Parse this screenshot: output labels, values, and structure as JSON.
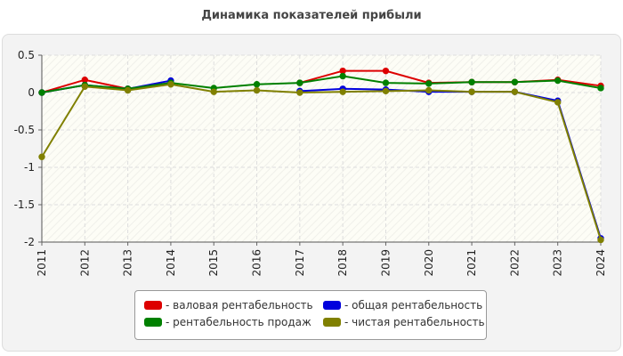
{
  "chart_data": {
    "type": "line",
    "title": "Динамика показателей прибыли",
    "categories": [
      "2011",
      "2012",
      "2013",
      "2014",
      "2015",
      "2016",
      "2017",
      "2018",
      "2019",
      "2020",
      "2021",
      "2022",
      "2023",
      "2024"
    ],
    "ylim": [
      -2,
      0.5
    ],
    "yticks": [
      "0.5",
      "0",
      "-0.5",
      "-1",
      "-1.5",
      "-2"
    ],
    "ytick_values": [
      0.5,
      0,
      -0.5,
      -1,
      -1.5,
      -2
    ],
    "grid": true,
    "legend_position": "bottom",
    "series": [
      {
        "name": "- валовая рентабельность",
        "color": "#dd0000",
        "values": [
          0.0,
          0.17,
          0.05,
          0.13,
          null,
          null,
          0.13,
          0.29,
          0.29,
          0.13,
          0.14,
          0.14,
          0.17,
          0.09
        ]
      },
      {
        "name": "- общая рентабельность",
        "color": "#0000dd",
        "values": [
          0.0,
          0.1,
          0.05,
          0.16,
          null,
          null,
          0.02,
          0.05,
          0.04,
          0.01,
          0.01,
          0.01,
          -0.11,
          -1.95
        ]
      },
      {
        "name": "- рентабельность продаж",
        "color": "#008000",
        "values": [
          0.0,
          0.1,
          0.05,
          0.13,
          0.06,
          0.11,
          0.13,
          0.22,
          0.13,
          0.12,
          0.14,
          0.14,
          0.16,
          0.06
        ]
      },
      {
        "name": "- чистая рентабельность",
        "color": "#808000",
        "values": [
          -0.86,
          0.08,
          0.03,
          0.11,
          0.01,
          0.03,
          0.0,
          0.01,
          0.02,
          0.03,
          0.01,
          0.01,
          -0.13,
          -1.97
        ]
      }
    ]
  }
}
